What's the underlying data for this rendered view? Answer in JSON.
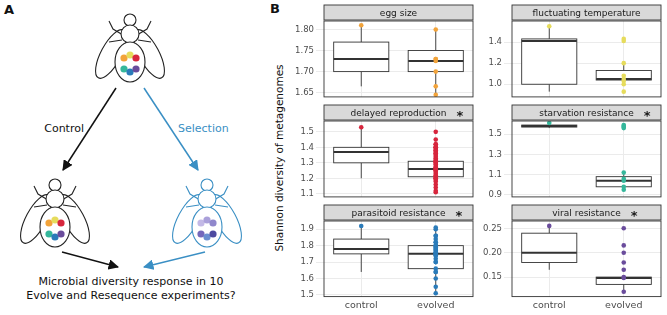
{
  "panel_a": {
    "label": "A",
    "left_arrow": "Control",
    "right_arrow": "Selection",
    "question": [
      "Microbial diversity response in 10",
      "Evolve and Resequence experiments?"
    ]
  },
  "panel_b": {
    "label": "B",
    "y_label": "Shannon diversity of metagenomes"
  },
  "chart_data": [
    {
      "type": "box",
      "title": "egg size",
      "categories": [
        "control",
        "evolved"
      ],
      "color": "#f2a33a",
      "boxes": [
        {
          "min": 1.665,
          "q1": 1.7,
          "median": 1.73,
          "q3": 1.77,
          "max": 1.81
        },
        {
          "min": 1.645,
          "q1": 1.7,
          "median": 1.725,
          "q3": 1.75,
          "max": 1.8
        }
      ],
      "points": [
        [
          1.81,
          1.73,
          1.665
        ],
        [
          1.8,
          1.73,
          1.725,
          1.7,
          1.645
        ]
      ],
      "ylim": [
        1.64,
        1.82
      ],
      "yticks": [
        1.65,
        {
          "value": 1.7,
          "label": "1.70"
        },
        1.75,
        {
          "value": 1.8,
          "label": "1.80"
        }
      ],
      "grid": true,
      "tick_labels": "y"
    },
    {
      "type": "box",
      "title": "fluctuating temperature",
      "categories": [
        "control",
        "evolved"
      ],
      "color": "#e6dc5c",
      "boxes": [
        {
          "min": 0.93,
          "q1": 1.0,
          "median": 1.41,
          "q3": 1.43,
          "max": 1.55
        },
        {
          "min": 1.03,
          "q1": 1.04,
          "median": 1.05,
          "q3": 1.13,
          "max": 1.2
        }
      ],
      "points": [
        [
          1.55,
          1.43,
          1.41,
          1.0,
          0.93
        ],
        [
          1.2,
          1.08,
          1.05,
          1.03
        ]
      ],
      "ylim": [
        0.88,
        1.6
      ],
      "yticks": [
        {
          "value": 1,
          "label": "1.0"
        },
        1.2,
        1.4
      ],
      "grid": true,
      "tick_labels": "y"
    },
    {
      "type": "box",
      "title": "delayed reproduction",
      "annotation": "*",
      "categories": [
        "control",
        "evolved"
      ],
      "color": "#d7263d",
      "boxes": [
        {
          "min": 1.2,
          "q1": 1.3,
          "median": 1.37,
          "q3": 1.4,
          "max": 1.53
        },
        {
          "min": 1.11,
          "q1": 1.21,
          "median": 1.26,
          "q3": 1.31,
          "max": 1.42
        }
      ],
      "points": [
        [
          1.53,
          1.5,
          1.45,
          1.42,
          1.4,
          1.4,
          1.39,
          1.38,
          1.37,
          1.36,
          1.35,
          1.33,
          1.31,
          1.3,
          1.25,
          1.2
        ],
        [
          1.42,
          1.4,
          1.38,
          1.36,
          1.34,
          1.32,
          1.31,
          1.31,
          1.3,
          1.29,
          1.28,
          1.27,
          1.27,
          1.26,
          1.26,
          1.25,
          1.24,
          1.23,
          1.22,
          1.21,
          1.21,
          1.2,
          1.19,
          1.18,
          1.16,
          1.14,
          1.12,
          1.11
        ]
      ],
      "ylim": [
        1.08,
        1.57
      ],
      "yticks": [
        1.1,
        1.2,
        1.3,
        1.4,
        1.5
      ],
      "grid": true,
      "tick_labels": "y"
    },
    {
      "type": "box",
      "title": "starvation resistance",
      "annotation": "*",
      "categories": [
        "control",
        "evolved"
      ],
      "color": "#35b79b",
      "boxes": [
        {
          "min": 1.56,
          "q1": 1.57,
          "median": 1.58,
          "q3": 1.59,
          "max": 1.61
        },
        {
          "min": 0.95,
          "q1": 0.98,
          "median": 1.04,
          "q3": 1.08,
          "max": 1.12
        }
      ],
      "points": [
        [
          1.61,
          1.59,
          1.58,
          1.57,
          1.56
        ],
        [
          1.12,
          1.06,
          1.04,
          0.98,
          0.95
        ]
      ],
      "ylim": [
        0.88,
        1.63
      ],
      "yticks": [
        0.9,
        1.1,
        1.3,
        1.5
      ],
      "grid": true,
      "tick_labels": "y"
    },
    {
      "type": "box",
      "title": "parasitoid resistance",
      "annotation": "*",
      "categories": [
        "control",
        "evolved"
      ],
      "color": "#2b7bb9",
      "boxes": [
        {
          "min": 1.64,
          "q1": 1.75,
          "median": 1.78,
          "q3": 1.84,
          "max": 1.92
        },
        {
          "min": 1.51,
          "q1": 1.66,
          "median": 1.75,
          "q3": 1.8,
          "max": 1.91
        }
      ],
      "points": [
        [
          1.92,
          1.9,
          1.86,
          1.84,
          1.82,
          1.8,
          1.79,
          1.78,
          1.77,
          1.76,
          1.75,
          1.74,
          1.7,
          1.64
        ],
        [
          1.91,
          1.86,
          1.82,
          1.8,
          1.8,
          1.78,
          1.76,
          1.75,
          1.74,
          1.72,
          1.7,
          1.66,
          1.64,
          1.6,
          1.55,
          1.51
        ]
      ],
      "ylim": [
        1.49,
        1.95
      ],
      "yticks": [
        1.5,
        1.6,
        1.7,
        1.8,
        1.9
      ],
      "grid": true
    },
    {
      "type": "box",
      "title": "viral resistance",
      "annotation": "*",
      "categories": [
        "control",
        "evolved"
      ],
      "color": "#6a4c9c",
      "boxes": [
        {
          "min": 0.165,
          "q1": 0.18,
          "median": 0.2,
          "q3": 0.24,
          "max": 0.255
        },
        {
          "min": 0.12,
          "q1": 0.135,
          "median": 0.148,
          "q3": 0.15,
          "max": 0.15
        }
      ],
      "points": [
        [
          0.255,
          0.25,
          0.215,
          0.2,
          0.18,
          0.165
        ],
        [
          0.15,
          0.148,
          0.12
        ]
      ],
      "ylim": [
        0.11,
        0.265
      ],
      "yticks": [
        {
          "value": 0.15,
          "label": "0.15"
        },
        {
          "value": 0.2,
          "label": "0.20"
        },
        {
          "value": 0.25,
          "label": "0.25"
        }
      ],
      "grid": true
    }
  ]
}
